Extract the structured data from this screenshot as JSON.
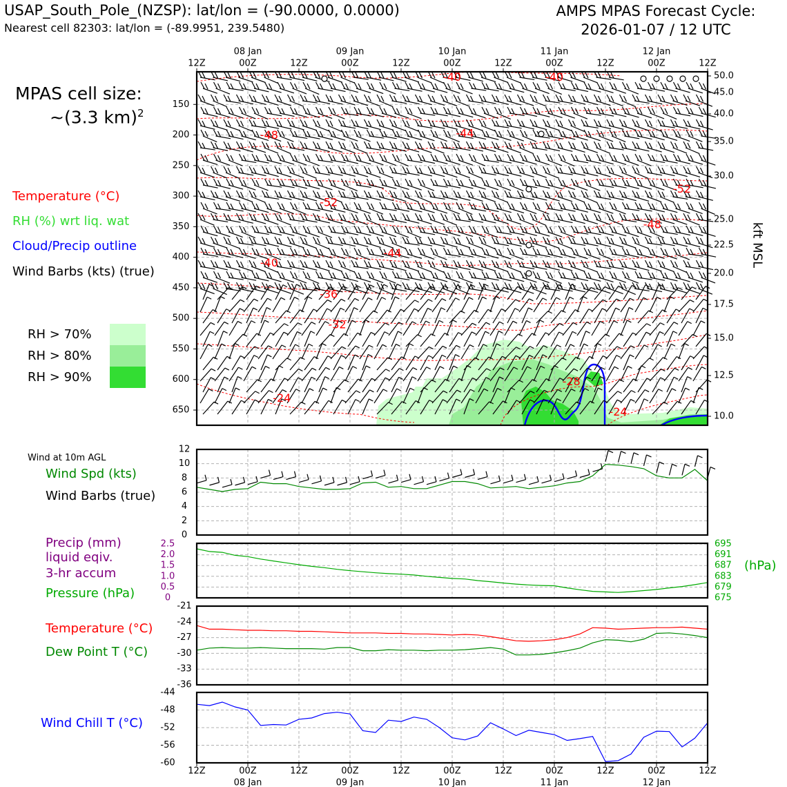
{
  "header": {
    "station_line": "USAP_South_Pole_(NZSP): lat/lon = (-90.0000, 0.0000)",
    "nearest_cell_line": "Nearest cell 82303: lat/lon = (-89.9951, 239.5480)",
    "forecast_title": "AMPS MPAS Forecast Cycle:",
    "forecast_cycle": "2026-01-07 / 12 UTC"
  },
  "cell_size": {
    "label": "MPAS cell size:",
    "value_text": "~(3.3 km)",
    "exponent": "2"
  },
  "legend": {
    "temperature": {
      "text": "Temperature (°C)",
      "color": "#ff0000"
    },
    "rh": {
      "text": "RH (%) wrt liq. wat",
      "color": "#33dd33"
    },
    "cloud": {
      "text": "Cloud/Precip outline",
      "color": "#0000ff"
    },
    "wind": {
      "text": "Wind Barbs (kts) (true)",
      "color": "#000000"
    }
  },
  "rh_legend": [
    {
      "label": "RH > 70%",
      "color": "#ccffcc"
    },
    {
      "label": "RH > 80%",
      "color": "#99ee99"
    },
    {
      "label": "RH > 90%",
      "color": "#33dd33"
    }
  ],
  "time_axis": {
    "top_hours": [
      "12Z",
      "00Z",
      "12Z",
      "00Z",
      "12Z",
      "00Z",
      "12Z",
      "00Z",
      "12Z",
      "00Z",
      "12Z"
    ],
    "dates": [
      "08 Jan",
      "09 Jan",
      "10 Jan",
      "11 Jan",
      "12 Jan"
    ],
    "bottom_hours": [
      "12Z",
      "00Z",
      "12Z",
      "00Z",
      "12Z",
      "00Z",
      "12Z",
      "00Z",
      "12Z",
      "00Z",
      "12Z"
    ]
  },
  "panel_labels": {
    "wind_title": "Wind at 10m AGL",
    "wind_spd": "Wind Spd (kts)",
    "wind_barbs": "Wind Barbs (true)",
    "precip1": "Precip (mm)",
    "precip2": "liquid eqiv.",
    "precip3": "3-hr accum",
    "pressure": "Pressure (hPa)",
    "pressure_unit": "(hPa)",
    "temp": "Temperature (°C)",
    "dewpoint": "Dew Point T (°C)",
    "windchill": "Wind Chill T (°C)",
    "kft_msl": "kft MSL"
  },
  "colors": {
    "temperature": "#ff0000",
    "rh_text": "#33dd33",
    "cloud_outline": "#0000ff",
    "wind_speed": "#008800",
    "pressure": "#00aa00",
    "precip": "#800080",
    "dewpoint": "#008800",
    "windchill": "#0000ff",
    "grid": "#b0b0b0"
  },
  "chart_data": [
    {
      "type": "line",
      "name": "cross-section",
      "y_left_ticks": [
        150,
        200,
        250,
        300,
        350,
        400,
        450,
        500,
        550,
        600,
        650
      ],
      "y_right_ticks": [
        50.0,
        45.0,
        40.0,
        35.0,
        30.0,
        25.0,
        22.5,
        20.0,
        17.5,
        15.0,
        12.5,
        10.0
      ],
      "temperature_contour_labels": [
        {
          "text": "-40",
          "t_h": 60,
          "p_hPa": 105
        },
        {
          "text": "-40",
          "t_h": 84,
          "p_hPa": 105
        },
        {
          "text": "-48",
          "t_h": 17,
          "p_hPa": 200
        },
        {
          "text": "-44",
          "t_h": 63,
          "p_hPa": 197
        },
        {
          "text": "-52",
          "t_h": 31,
          "p_hPa": 310
        },
        {
          "text": "-52",
          "t_h": 114,
          "p_hPa": 288
        },
        {
          "text": "-48",
          "t_h": 107,
          "p_hPa": 346
        },
        {
          "text": "-44",
          "t_h": 46,
          "p_hPa": 393
        },
        {
          "text": "-40",
          "t_h": 17,
          "p_hPa": 409
        },
        {
          "text": "-36",
          "t_h": 31,
          "p_hPa": 460
        },
        {
          "text": "-32",
          "t_h": 33,
          "p_hPa": 510
        },
        {
          "text": "-28",
          "t_h": 88,
          "p_hPa": 603
        },
        {
          "text": "-24",
          "t_h": 20,
          "p_hPa": 630
        },
        {
          "text": "-24",
          "t_h": 99,
          "p_hPa": 653
        }
      ]
    },
    {
      "type": "line",
      "name": "wind-10m",
      "x": [
        0,
        3,
        6,
        9,
        12,
        15,
        18,
        21,
        24,
        27,
        30,
        33,
        36,
        39,
        42,
        45,
        48,
        51,
        54,
        57,
        60,
        63,
        66,
        69,
        72,
        75,
        78,
        81,
        84,
        87,
        90,
        93,
        96,
        99,
        102,
        105,
        108,
        111,
        114,
        117,
        120
      ],
      "values": [
        6.7,
        6.4,
        6.1,
        6.4,
        6.5,
        7.4,
        7.2,
        7.2,
        6.8,
        6.6,
        6.4,
        6.4,
        6.5,
        7.3,
        7.4,
        6.7,
        6.8,
        6.5,
        6.5,
        7.0,
        7.5,
        7.5,
        7.2,
        6.6,
        6.7,
        6.8,
        6.5,
        6.7,
        6.9,
        7.3,
        7.5,
        8.3,
        9.9,
        9.8,
        9.6,
        9.3,
        8.3,
        8.0,
        8.0,
        9.2,
        7.6
      ],
      "ylim": [
        0,
        12
      ],
      "yticks": [
        0,
        2,
        4,
        6,
        8,
        10,
        12
      ]
    },
    {
      "type": "line",
      "name": "pressure-precip",
      "x": [
        0,
        3,
        6,
        9,
        12,
        15,
        18,
        21,
        24,
        27,
        30,
        33,
        36,
        39,
        42,
        45,
        48,
        51,
        54,
        57,
        60,
        63,
        66,
        69,
        72,
        75,
        78,
        81,
        84,
        87,
        90,
        93,
        96,
        99,
        102,
        105,
        108,
        111,
        114,
        117,
        120
      ],
      "values": [
        693.2,
        692.2,
        691.9,
        690.8,
        690.3,
        689.4,
        688.7,
        688.0,
        687.3,
        686.7,
        686.2,
        685.6,
        685.1,
        684.7,
        684.3,
        684.0,
        683.8,
        683.5,
        683.0,
        682.6,
        682.2,
        682.0,
        681.4,
        681.0,
        680.5,
        680.1,
        679.8,
        679.6,
        679.5,
        678.7,
        678.0,
        677.4,
        677.2,
        677.0,
        677.3,
        677.7,
        678.1,
        678.7,
        679.2,
        679.9,
        680.7
      ],
      "precip_values": [
        0,
        0,
        0,
        0,
        0,
        0,
        0,
        0,
        0,
        0,
        0,
        0,
        0,
        0,
        0,
        0,
        0,
        0,
        0,
        0,
        0,
        0,
        0,
        0,
        0,
        0,
        0,
        0,
        0,
        0,
        0,
        0,
        0,
        0,
        0,
        0,
        0,
        0,
        0,
        0,
        0
      ],
      "left_ticks": [
        0,
        0.5,
        1.0,
        1.5,
        2.0,
        2.5
      ],
      "right_ticks": [
        675,
        679,
        683,
        687,
        691,
        695
      ],
      "ylim_precip": [
        0,
        2.5
      ],
      "ylim_pressure": [
        675,
        695
      ]
    },
    {
      "type": "line",
      "name": "temp-dewpoint",
      "x": [
        0,
        3,
        6,
        9,
        12,
        15,
        18,
        21,
        24,
        27,
        30,
        33,
        36,
        39,
        42,
        45,
        48,
        51,
        54,
        57,
        60,
        63,
        66,
        69,
        72,
        75,
        78,
        81,
        84,
        87,
        90,
        93,
        96,
        99,
        102,
        105,
        108,
        111,
        114,
        117,
        120
      ],
      "series": [
        {
          "name": "Temperature",
          "values": [
            -24.7,
            -25.4,
            -25.4,
            -25.5,
            -25.6,
            -25.6,
            -25.7,
            -25.7,
            -25.8,
            -25.8,
            -25.9,
            -26.0,
            -26.1,
            -26.1,
            -26.1,
            -26.2,
            -26.2,
            -26.3,
            -26.3,
            -26.4,
            -26.5,
            -26.4,
            -26.5,
            -26.8,
            -27.2,
            -27.6,
            -27.7,
            -27.6,
            -27.4,
            -27.0,
            -26.3,
            -25.1,
            -25.2,
            -25.4,
            -25.3,
            -25.2,
            -25.1,
            -25.1,
            -25.0,
            -25.2,
            -25.4
          ]
        },
        {
          "name": "Dew Point T",
          "values": [
            -29.4,
            -29.0,
            -28.9,
            -29.0,
            -29.0,
            -28.9,
            -29.0,
            -29.1,
            -29.1,
            -29.1,
            -29.2,
            -28.9,
            -28.9,
            -29.5,
            -29.5,
            -29.3,
            -29.4,
            -29.4,
            -29.5,
            -29.4,
            -29.4,
            -29.3,
            -29.1,
            -28.9,
            -29.2,
            -30.3,
            -30.3,
            -30.2,
            -29.9,
            -29.5,
            -29.0,
            -28.0,
            -27.4,
            -27.5,
            -27.8,
            -27.3,
            -26.2,
            -26.1,
            -26.3,
            -26.6,
            -27.0
          ]
        }
      ],
      "ylim": [
        -36,
        -21
      ],
      "yticks": [
        -36,
        -33,
        -30,
        -27,
        -24,
        -21
      ]
    },
    {
      "type": "line",
      "name": "wind-chill",
      "x": [
        0,
        3,
        6,
        9,
        12,
        15,
        18,
        21,
        24,
        27,
        30,
        33,
        36,
        39,
        42,
        45,
        48,
        51,
        54,
        57,
        60,
        63,
        66,
        69,
        72,
        75,
        78,
        81,
        84,
        87,
        90,
        93,
        96,
        99,
        102,
        105,
        108,
        111,
        114,
        117,
        120
      ],
      "values": [
        -46.7,
        -47.0,
        -46.2,
        -47.3,
        -48.0,
        -51.5,
        -51.3,
        -51.4,
        -50.1,
        -49.8,
        -48.8,
        -48.5,
        -48.9,
        -52.7,
        -53.1,
        -50.3,
        -50.6,
        -49.6,
        -50.1,
        -52.0,
        -54.3,
        -54.8,
        -53.9,
        -50.9,
        -52.3,
        -53.8,
        -52.6,
        -53.1,
        -53.6,
        -54.9,
        -54.5,
        -54.0,
        -59.7,
        -59.5,
        -58.0,
        -54.2,
        -52.8,
        -52.9,
        -56.4,
        -54.4,
        -50.9
      ],
      "ylim": [
        -60,
        -44
      ],
      "yticks": [
        -60,
        -56,
        -52,
        -48,
        -44
      ]
    }
  ]
}
